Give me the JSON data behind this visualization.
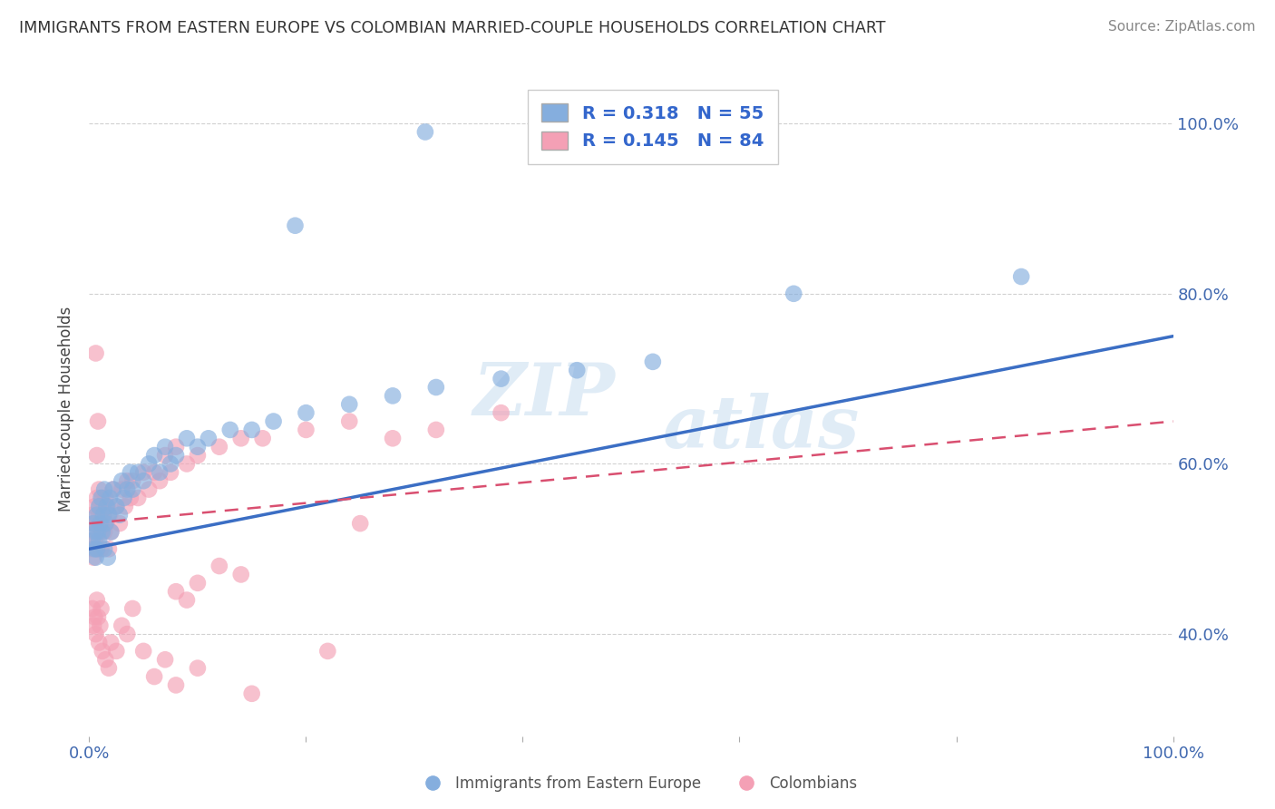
{
  "title": "IMMIGRANTS FROM EASTERN EUROPE VS COLOMBIAN MARRIED-COUPLE HOUSEHOLDS CORRELATION CHART",
  "source": "Source: ZipAtlas.com",
  "ylabel": "Married-couple Households",
  "xlim": [
    0.0,
    1.0
  ],
  "ylim": [
    0.28,
    1.05
  ],
  "yticks": [
    0.4,
    0.6,
    0.8,
    1.0
  ],
  "ytick_labels": [
    "40.0%",
    "60.0%",
    "80.0%",
    "100.0%"
  ],
  "xticks": [
    0.0,
    0.2,
    0.4,
    0.6,
    0.8,
    1.0
  ],
  "xtick_labels": [
    "0.0%",
    "",
    "",
    "",
    "",
    "100.0%"
  ],
  "blue_color": "#85AEDE",
  "pink_color": "#F4A0B5",
  "blue_line_color": "#3B6EC4",
  "pink_line_color": "#D94F70",
  "r_blue": 0.318,
  "n_blue": 55,
  "r_pink": 0.145,
  "n_pink": 84,
  "legend_label_blue": "Immigrants from Eastern Europe",
  "legend_label_pink": "Colombians",
  "watermark_zip": "ZIP",
  "watermark_atlas": "atlas",
  "blue_x": [
    0.003,
    0.004,
    0.005,
    0.006,
    0.006,
    0.007,
    0.007,
    0.008,
    0.009,
    0.009,
    0.01,
    0.011,
    0.012,
    0.013,
    0.014,
    0.014,
    0.015,
    0.016,
    0.017,
    0.018,
    0.019,
    0.02,
    0.022,
    0.025,
    0.028,
    0.03,
    0.032,
    0.035,
    0.038,
    0.04,
    0.045,
    0.05,
    0.055,
    0.06,
    0.065,
    0.07,
    0.075,
    0.08,
    0.09,
    0.1,
    0.11,
    0.13,
    0.15,
    0.17,
    0.2,
    0.24,
    0.28,
    0.32,
    0.38,
    0.45,
    0.52,
    0.19,
    0.31,
    0.86,
    0.65
  ],
  "blue_y": [
    0.51,
    0.53,
    0.5,
    0.49,
    0.52,
    0.54,
    0.5,
    0.52,
    0.55,
    0.51,
    0.53,
    0.56,
    0.52,
    0.54,
    0.5,
    0.57,
    0.53,
    0.55,
    0.49,
    0.54,
    0.56,
    0.52,
    0.57,
    0.55,
    0.54,
    0.58,
    0.56,
    0.57,
    0.59,
    0.57,
    0.59,
    0.58,
    0.6,
    0.61,
    0.59,
    0.62,
    0.6,
    0.61,
    0.63,
    0.62,
    0.63,
    0.64,
    0.64,
    0.65,
    0.66,
    0.67,
    0.68,
    0.69,
    0.7,
    0.71,
    0.72,
    0.88,
    0.99,
    0.82,
    0.8
  ],
  "pink_x": [
    0.002,
    0.003,
    0.003,
    0.004,
    0.004,
    0.005,
    0.005,
    0.006,
    0.006,
    0.007,
    0.007,
    0.008,
    0.008,
    0.009,
    0.009,
    0.01,
    0.01,
    0.011,
    0.011,
    0.012,
    0.013,
    0.014,
    0.015,
    0.016,
    0.017,
    0.018,
    0.019,
    0.02,
    0.022,
    0.025,
    0.028,
    0.03,
    0.033,
    0.035,
    0.038,
    0.04,
    0.045,
    0.05,
    0.055,
    0.06,
    0.065,
    0.07,
    0.075,
    0.08,
    0.09,
    0.1,
    0.12,
    0.14,
    0.16,
    0.2,
    0.24,
    0.28,
    0.32,
    0.38,
    0.08,
    0.09,
    0.1,
    0.12,
    0.14,
    0.25,
    0.003,
    0.004,
    0.005,
    0.006,
    0.007,
    0.008,
    0.009,
    0.01,
    0.011,
    0.012,
    0.015,
    0.018,
    0.02,
    0.025,
    0.03,
    0.035,
    0.04,
    0.05,
    0.06,
    0.07,
    0.08,
    0.1,
    0.15,
    0.22
  ],
  "pink_y": [
    0.5,
    0.52,
    0.54,
    0.49,
    0.53,
    0.55,
    0.51,
    0.73,
    0.53,
    0.61,
    0.56,
    0.65,
    0.5,
    0.54,
    0.57,
    0.52,
    0.55,
    0.53,
    0.5,
    0.56,
    0.54,
    0.52,
    0.56,
    0.53,
    0.55,
    0.5,
    0.54,
    0.52,
    0.57,
    0.55,
    0.53,
    0.57,
    0.55,
    0.58,
    0.56,
    0.58,
    0.56,
    0.59,
    0.57,
    0.59,
    0.58,
    0.61,
    0.59,
    0.62,
    0.6,
    0.61,
    0.62,
    0.63,
    0.63,
    0.64,
    0.65,
    0.63,
    0.64,
    0.66,
    0.45,
    0.44,
    0.46,
    0.48,
    0.47,
    0.53,
    0.43,
    0.41,
    0.42,
    0.4,
    0.44,
    0.42,
    0.39,
    0.41,
    0.43,
    0.38,
    0.37,
    0.36,
    0.39,
    0.38,
    0.41,
    0.4,
    0.43,
    0.38,
    0.35,
    0.37,
    0.34,
    0.36,
    0.33,
    0.38
  ]
}
